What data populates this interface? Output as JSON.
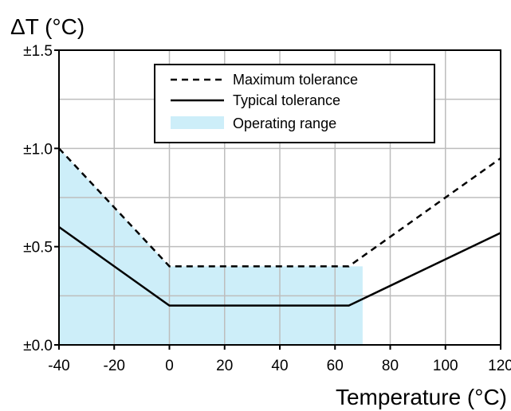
{
  "chart_data": {
    "type": "line",
    "title": "",
    "xlabel": "Temperature (°C)",
    "ylabel": "ΔT (°C)",
    "xlim": [
      -40,
      120
    ],
    "ylim": [
      0,
      1.5
    ],
    "x_ticks": [
      -40,
      -20,
      0,
      20,
      40,
      60,
      80,
      100,
      120
    ],
    "x_tick_labels": [
      "-40",
      "-20",
      "0",
      "20",
      "40",
      "60",
      "80",
      "100",
      "120"
    ],
    "y_ticks": [
      0,
      0.5,
      1.0,
      1.5
    ],
    "y_tick_labels": [
      "±0.0",
      "±0.5",
      "±1.0",
      "±1.5"
    ],
    "y_minor_gridlines": [
      0.25,
      0.75,
      1.25
    ],
    "grid": true,
    "legend_placement": "top-center",
    "series": [
      {
        "name": "Maximum tolerance",
        "style": "dashed",
        "color": "#000000",
        "points": [
          [
            -40,
            1.0
          ],
          [
            0,
            0.4
          ],
          [
            65,
            0.4
          ],
          [
            120,
            0.95
          ]
        ]
      },
      {
        "name": "Typical tolerance",
        "style": "solid",
        "color": "#000000",
        "points": [
          [
            -40,
            0.6
          ],
          [
            0,
            0.2
          ],
          [
            65,
            0.2
          ],
          [
            120,
            0.57
          ]
        ]
      }
    ],
    "regions": [
      {
        "name": "Operating range",
        "color": "#cdeef9",
        "x_range": [
          -40,
          70
        ],
        "upper_boundary": [
          [
            -40,
            1.0
          ],
          [
            0,
            0.4
          ],
          [
            70,
            0.4
          ]
        ]
      }
    ]
  }
}
